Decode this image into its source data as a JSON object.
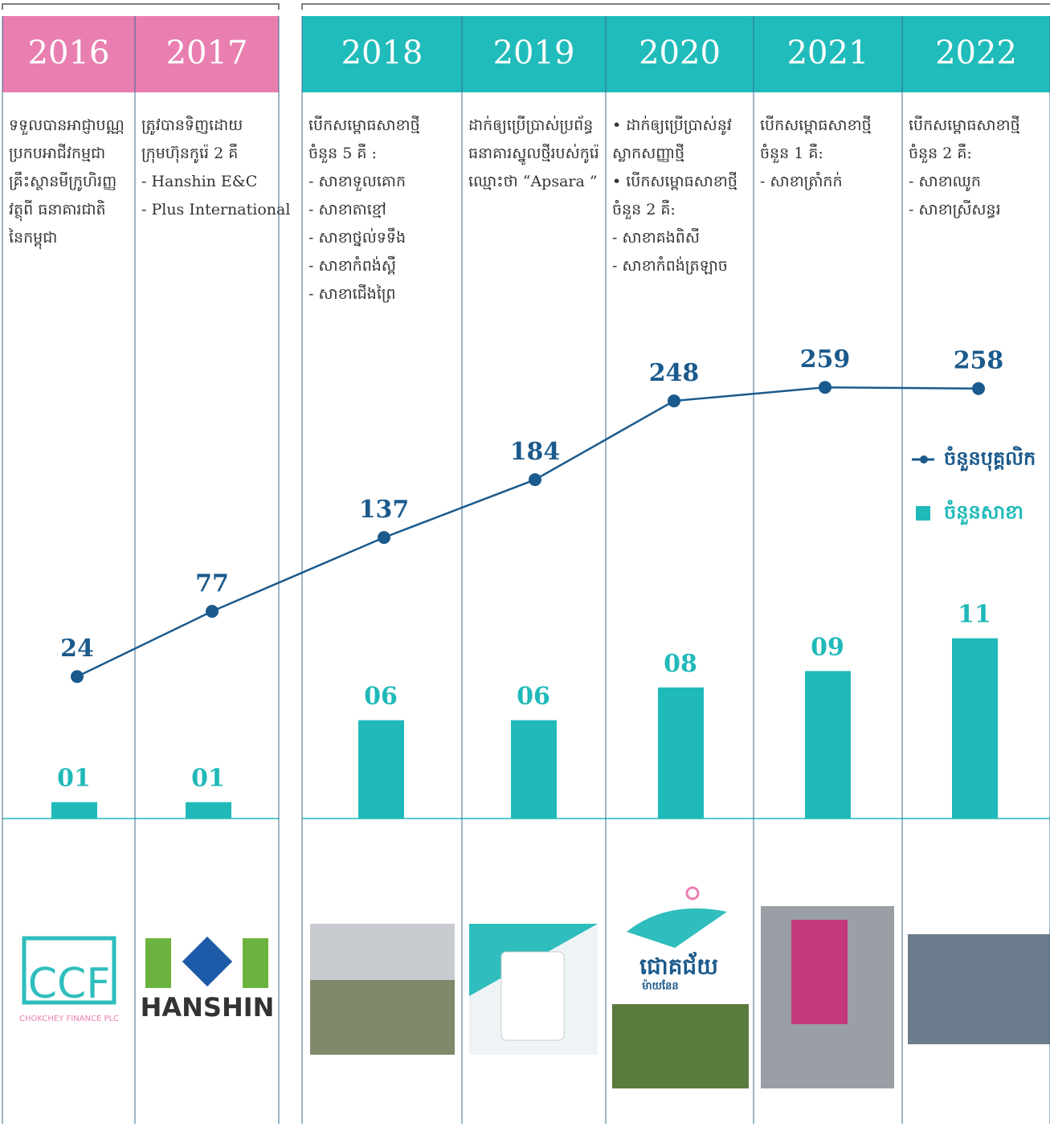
{
  "chart_data": {
    "type": "combo",
    "categories": [
      "2016",
      "2017",
      "2018",
      "2019",
      "2020",
      "2021",
      "2022"
    ],
    "series": [
      {
        "name": "ចំនួនបុគ្គលិក",
        "type": "line",
        "color": "#1b5a8c",
        "values": [
          24,
          77,
          137,
          184,
          248,
          259,
          258
        ]
      },
      {
        "name": "ចំនួនសាខា",
        "type": "bar",
        "color": "#20b9b9",
        "values": [
          1,
          1,
          6,
          6,
          8,
          9,
          11
        ],
        "value_labels": [
          "01",
          "01",
          "06",
          "06",
          "08",
          "09",
          "11"
        ]
      }
    ]
  },
  "columns": [
    {
      "lines": [
        "ទទួលបានអាជ្ញាបណ្ណ",
        "ប្រកបអាជីវកម្មជា",
        "គ្រឹះស្ថានមីក្រូហិរញ្ញ",
        "វត្ថុពី ធនាគារជាតិ",
        "នៃកម្ពុជា"
      ]
    },
    {
      "lines": [
        "ត្រូវបានទិញដោយ",
        "ក្រុមហ៊ុនកូរ៉េ 2 គឺ",
        "-  Hanshin E&C",
        "-  Plus International"
      ]
    },
    {
      "lines": [
        "បើកសម្ពោធសាខាថ្មី",
        "ចំនួន 5 គឺ :",
        "- សាខាទួលគោក",
        "- សាខាតាខ្មៅ",
        "- សាខាថ្នល់ទទឹង",
        "- សាខាកំពង់ស្ពឺ",
        "- សាខាជើងព្រៃ"
      ]
    },
    {
      "lines": [
        "ដាក់ឲ្យប្រើប្រាស់ប្រព័ន្ធ",
        "ធនាគារស្នូលថ្មីរបស់កូរ៉េ",
        "ឈ្មោះថា “Apsara ”"
      ]
    },
    {
      "lines": [
        "• ដាក់ឲ្យប្រើប្រាស់នូវ",
        "ស្លាកសញ្ញាថ្មី",
        "• បើកសម្ពោធសាខាថ្មី",
        "ចំនួន 2 គឺ:",
        "- សាខាគងពិសី",
        "- សាខាកំពង់ត្រឡាច"
      ]
    },
    {
      "lines": [
        "បើកសម្ពោធសាខាថ្មី",
        "ចំនួន 1 គឺ:",
        "- សាខាត្រាំកក់"
      ]
    },
    {
      "lines": [
        "បើកសម្ពោធសាខាថ្មី",
        "ចំនួន 2 គឺ:",
        "- សាខាឈូក",
        "- សាខាស្រីសន្ធរ"
      ]
    }
  ],
  "logos": {
    "ccf": "CCF",
    "ccf_name": "CHOKCHEY FINANCE PLC",
    "hanshin": "HANSHIN",
    "brand": "ជោគជ័យ",
    "brand_sub": "ម៉ាយនែន"
  }
}
